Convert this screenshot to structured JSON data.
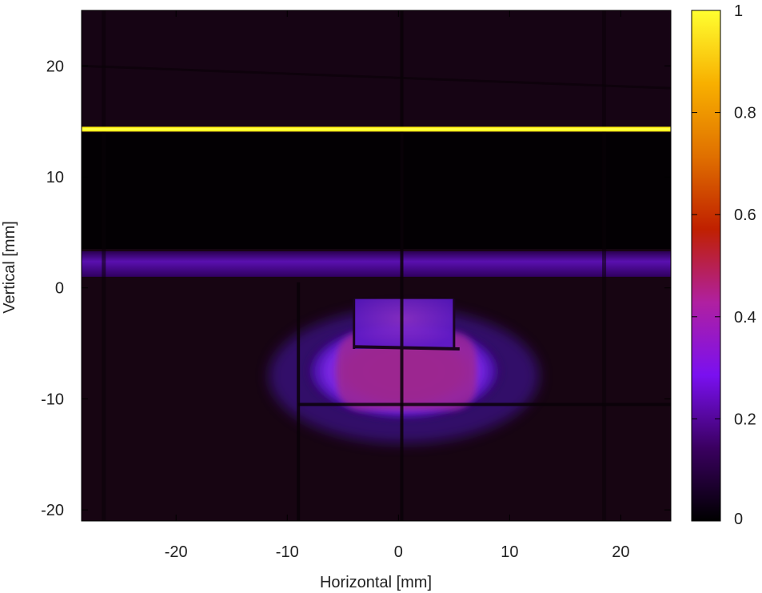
{
  "chart_data": {
    "type": "heatmap",
    "title": "",
    "xlabel": "Horizontal [mm]",
    "ylabel": "Vertical [mm]",
    "xlim": [
      -28.5,
      24.5
    ],
    "ylim": [
      -21,
      25
    ],
    "x_ticks": [
      {
        "value": -20,
        "label": "-20"
      },
      {
        "value": -10,
        "label": "-10"
      },
      {
        "value": 0,
        "label": "0"
      },
      {
        "value": 10,
        "label": "10"
      },
      {
        "value": 20,
        "label": "20"
      }
    ],
    "y_ticks": [
      {
        "value": -20,
        "label": "-20"
      },
      {
        "value": -10,
        "label": "-10"
      },
      {
        "value": 0,
        "label": "0"
      },
      {
        "value": 10,
        "label": "10"
      },
      {
        "value": 20,
        "label": "20"
      }
    ],
    "colorbar": {
      "range": [
        0,
        1
      ],
      "ticks": [
        {
          "value": 0,
          "label": "0"
        },
        {
          "value": 0.2,
          "label": "0.2"
        },
        {
          "value": 0.4,
          "label": "0.4"
        },
        {
          "value": 0.6,
          "label": "0.6"
        },
        {
          "value": 0.8,
          "label": "0.8"
        },
        {
          "value": 1,
          "label": "1"
        }
      ],
      "palette": [
        "#000000",
        "#3a0060",
        "#7a10f0",
        "#b020a0",
        "#c02000",
        "#e07000",
        "#f8b000",
        "#ffff30"
      ]
    },
    "features": {
      "background_intensity": 0.05,
      "bright_line": {
        "y": 14.3,
        "intensity": 1.0
      },
      "dark_band": {
        "y_from": 3.5,
        "y_to": 14.0,
        "intensity": 0.0
      },
      "horizontal_band": {
        "y_from": 1.0,
        "y_to": 3.3,
        "intensity": 0.15
      },
      "central_blob": {
        "x_center": 0.5,
        "y_center": -7.5,
        "x_half_width": 9.0,
        "y_half_height": 4.5,
        "peak_intensity": 0.4
      },
      "top_lobes": {
        "x_from": -4.0,
        "x_to": 5.0,
        "y_from": -5.5,
        "y_to": -1.0,
        "intensity": 0.25
      }
    }
  }
}
